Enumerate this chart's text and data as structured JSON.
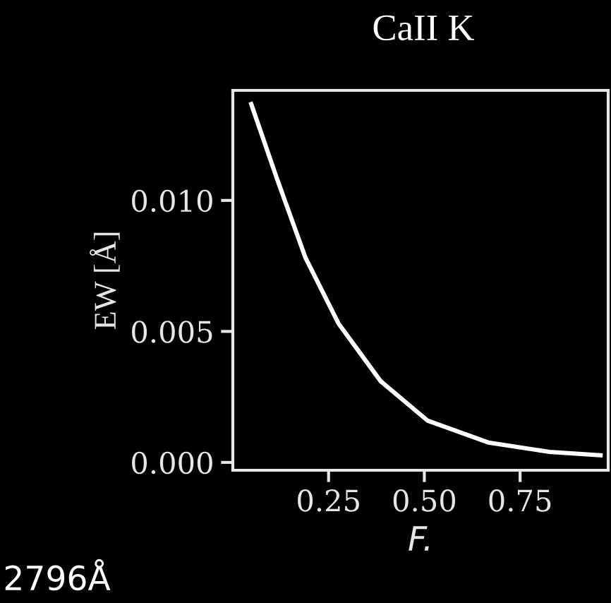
{
  "chart_data": {
    "type": "line",
    "title": "CaII K",
    "xlabel": "F.",
    "ylabel": "EW [Å]",
    "annotations": [
      "2796Å"
    ],
    "x": [
      0.048,
      0.116,
      0.19,
      0.276,
      0.386,
      0.508,
      0.667,
      0.827,
      0.96
    ],
    "series": [
      {
        "color": "#ffffff",
        "values": [
          0.01368,
          0.0108,
          0.0078,
          0.0053,
          0.0031,
          0.0016,
          0.00076,
          0.0004,
          0.00027
        ]
      }
    ],
    "xlim": [
      0.0,
      0.98
    ],
    "ylim": [
      -0.0003,
      0.0142
    ],
    "xticks": [
      0.25,
      {
        "value": 0.5,
        "label": "0.50"
      },
      0.75
    ],
    "yticks": [
      {
        "value": 0.0,
        "label": "0.000"
      },
      {
        "value": 0.005,
        "label": "0.005"
      },
      {
        "value": 0.01,
        "label": "0.010"
      }
    ],
    "grid": false,
    "legend": false,
    "marker": "none",
    "line_style": "solid"
  }
}
